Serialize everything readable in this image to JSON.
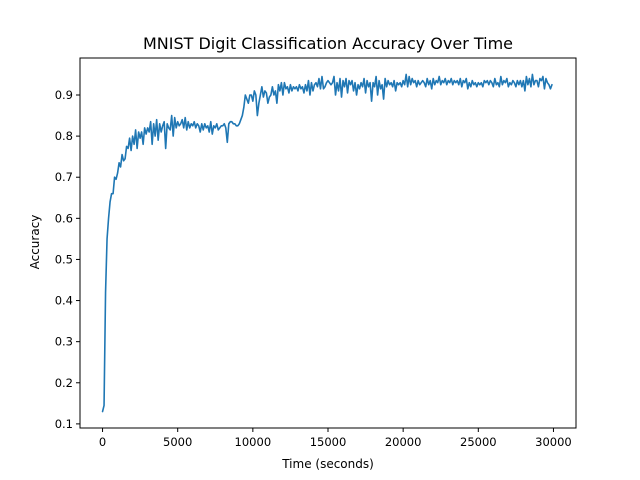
{
  "chart_data": {
    "type": "line",
    "title": "MNIST Digit Classification Accuracy Over Time",
    "xlabel": "Time (seconds)",
    "ylabel": "Accuracy",
    "xlim": [
      -1500,
      31500
    ],
    "ylim": [
      0.09,
      0.99
    ],
    "xticks": [
      0,
      5000,
      10000,
      15000,
      20000,
      25000,
      30000
    ],
    "xtick_labels": [
      "0",
      "5000",
      "10000",
      "15000",
      "20000",
      "25000",
      "30000"
    ],
    "yticks": [
      0.1,
      0.2,
      0.3,
      0.4,
      0.5,
      0.6,
      0.7,
      0.8,
      0.9
    ],
    "ytick_labels": [
      "0.1",
      "0.2",
      "0.3",
      "0.4",
      "0.5",
      "0.6",
      "0.7",
      "0.8",
      "0.9"
    ],
    "grid": false,
    "series": [
      {
        "color": "#1f77b4",
        "x": [
          0,
          100,
          200,
          300,
          400,
          500,
          600,
          700,
          800,
          900,
          1000,
          1100,
          1200,
          1300,
          1400,
          1500,
          1600,
          1700,
          1800,
          1900,
          2000,
          2100,
          2200,
          2300,
          2400,
          2500,
          2600,
          2700,
          2800,
          2900,
          3000,
          3100,
          3200,
          3300,
          3400,
          3500,
          3600,
          3700,
          3800,
          3900,
          4000,
          4100,
          4200,
          4300,
          4400,
          4500,
          4600,
          4700,
          4800,
          4900,
          5000,
          5100,
          5200,
          5300,
          5400,
          5500,
          5600,
          5700,
          5800,
          5900,
          6000,
          6100,
          6200,
          6300,
          6400,
          6500,
          6600,
          6700,
          6800,
          6900,
          7000,
          7100,
          7200,
          7300,
          7400,
          7500,
          7600,
          7700,
          7800,
          7900,
          8000,
          8100,
          8200,
          8300,
          8400,
          8500,
          8600,
          8700,
          8800,
          8900,
          9000,
          9100,
          9200,
          9300,
          9400,
          9500,
          9600,
          9700,
          9800,
          9900,
          10000,
          10100,
          10200,
          10300,
          10400,
          10500,
          10600,
          10700,
          10800,
          10900,
          11000,
          11100,
          11200,
          11300,
          11400,
          11500,
          11600,
          11700,
          11800,
          11900,
          12000,
          12100,
          12200,
          12300,
          12400,
          12500,
          12600,
          12700,
          12800,
          12900,
          13000,
          13100,
          13200,
          13300,
          13400,
          13500,
          13600,
          13700,
          13800,
          13900,
          14000,
          14100,
          14200,
          14300,
          14400,
          14500,
          14600,
          14700,
          14800,
          14900,
          15000,
          15100,
          15200,
          15300,
          15400,
          15500,
          15600,
          15700,
          15800,
          15900,
          16000,
          16100,
          16200,
          16300,
          16400,
          16500,
          16600,
          16700,
          16800,
          16900,
          17000,
          17100,
          17200,
          17300,
          17400,
          17500,
          17600,
          17700,
          17800,
          17900,
          18000,
          18100,
          18200,
          18300,
          18400,
          18500,
          18600,
          18700,
          18800,
          18900,
          19000,
          19100,
          19200,
          19300,
          19400,
          19500,
          19600,
          19700,
          19800,
          19900,
          20000,
          20100,
          20200,
          20300,
          20400,
          20500,
          20600,
          20700,
          20800,
          20900,
          21000,
          21100,
          21200,
          21300,
          21400,
          21500,
          21600,
          21700,
          21800,
          21900,
          22000,
          22100,
          22200,
          22300,
          22400,
          22500,
          22600,
          22700,
          22800,
          22900,
          23000,
          23100,
          23200,
          23300,
          23400,
          23500,
          23600,
          23700,
          23800,
          23900,
          24000,
          24100,
          24200,
          24300,
          24400,
          24500,
          24600,
          24700,
          24800,
          24900,
          25000,
          25100,
          25200,
          25300,
          25400,
          25500,
          25600,
          25700,
          25800,
          25900,
          26000,
          26100,
          26200,
          26300,
          26400,
          26500,
          26600,
          26700,
          26800,
          26900,
          27000,
          27100,
          27200,
          27300,
          27400,
          27500,
          27600,
          27700,
          27800,
          27900,
          28000,
          28100,
          28200,
          28300,
          28400,
          28500,
          28600,
          28700,
          28800,
          28900,
          29000,
          29100,
          29200,
          29300,
          29400,
          29500,
          29600,
          29700,
          29800,
          29900
        ],
        "y": [
          0.13,
          0.145,
          0.42,
          0.55,
          0.6,
          0.64,
          0.66,
          0.66,
          0.7,
          0.695,
          0.71,
          0.735,
          0.725,
          0.755,
          0.74,
          0.745,
          0.775,
          0.77,
          0.795,
          0.765,
          0.8,
          0.78,
          0.815,
          0.77,
          0.81,
          0.795,
          0.81,
          0.78,
          0.82,
          0.805,
          0.82,
          0.81,
          0.835,
          0.78,
          0.83,
          0.8,
          0.84,
          0.79,
          0.83,
          0.81,
          0.825,
          0.835,
          0.77,
          0.83,
          0.82,
          0.815,
          0.85,
          0.8,
          0.845,
          0.82,
          0.835,
          0.825,
          0.83,
          0.84,
          0.82,
          0.845,
          0.815,
          0.835,
          0.82,
          0.83,
          0.825,
          0.835,
          0.82,
          0.83,
          0.825,
          0.81,
          0.83,
          0.815,
          0.83,
          0.82,
          0.825,
          0.81,
          0.835,
          0.805,
          0.825,
          0.82,
          0.83,
          0.815,
          0.82,
          0.825,
          0.825,
          0.83,
          0.82,
          0.785,
          0.83,
          0.835,
          0.835,
          0.83,
          0.83,
          0.825,
          0.825,
          0.83,
          0.84,
          0.85,
          0.87,
          0.9,
          0.89,
          0.88,
          0.9,
          0.9,
          0.885,
          0.91,
          0.9,
          0.85,
          0.88,
          0.9,
          0.92,
          0.895,
          0.91,
          0.905,
          0.88,
          0.895,
          0.9,
          0.92,
          0.9,
          0.91,
          0.88,
          0.925,
          0.91,
          0.93,
          0.9,
          0.93,
          0.915,
          0.92,
          0.905,
          0.925,
          0.91,
          0.92,
          0.915,
          0.92,
          0.91,
          0.925,
          0.915,
          0.92,
          0.905,
          0.925,
          0.91,
          0.935,
          0.9,
          0.93,
          0.91,
          0.925,
          0.93,
          0.92,
          0.94,
          0.915,
          0.945,
          0.915,
          0.92,
          0.93,
          0.935,
          0.93,
          0.925,
          0.93,
          0.945,
          0.9,
          0.93,
          0.91,
          0.94,
          0.895,
          0.935,
          0.92,
          0.94,
          0.905,
          0.935,
          0.925,
          0.935,
          0.91,
          0.93,
          0.9,
          0.925,
          0.915,
          0.93,
          0.92,
          0.94,
          0.905,
          0.935,
          0.92,
          0.93,
          0.885,
          0.93,
          0.92,
          0.945,
          0.9,
          0.935,
          0.915,
          0.925,
          0.89,
          0.94,
          0.92,
          0.935,
          0.925,
          0.93,
          0.92,
          0.935,
          0.91,
          0.93,
          0.925,
          0.93,
          0.92,
          0.935,
          0.925,
          0.95,
          0.92,
          0.945,
          0.925,
          0.94,
          0.93,
          0.935,
          0.92,
          0.935,
          0.925,
          0.93,
          0.935,
          0.93,
          0.92,
          0.94,
          0.925,
          0.935,
          0.915,
          0.94,
          0.925,
          0.935,
          0.93,
          0.945,
          0.925,
          0.935,
          0.93,
          0.94,
          0.925,
          0.935,
          0.93,
          0.94,
          0.925,
          0.935,
          0.93,
          0.935,
          0.925,
          0.94,
          0.92,
          0.935,
          0.93,
          0.94,
          0.915,
          0.93,
          0.92,
          0.935,
          0.925,
          0.93,
          0.92,
          0.93,
          0.925,
          0.93,
          0.92,
          0.935,
          0.93,
          0.935,
          0.925,
          0.935,
          0.93,
          0.92,
          0.94,
          0.925,
          0.93,
          0.92,
          0.945,
          0.925,
          0.935,
          0.93,
          0.94,
          0.92,
          0.93,
          0.925,
          0.935,
          0.93,
          0.92,
          0.935,
          0.925,
          0.935,
          0.92,
          0.935,
          0.91,
          0.945,
          0.925,
          0.94,
          0.92,
          0.95,
          0.925,
          0.935,
          0.935,
          0.92,
          0.94,
          0.935,
          0.945,
          0.915,
          0.94,
          0.93,
          0.925,
          0.915,
          0.925
        ]
      }
    ]
  }
}
